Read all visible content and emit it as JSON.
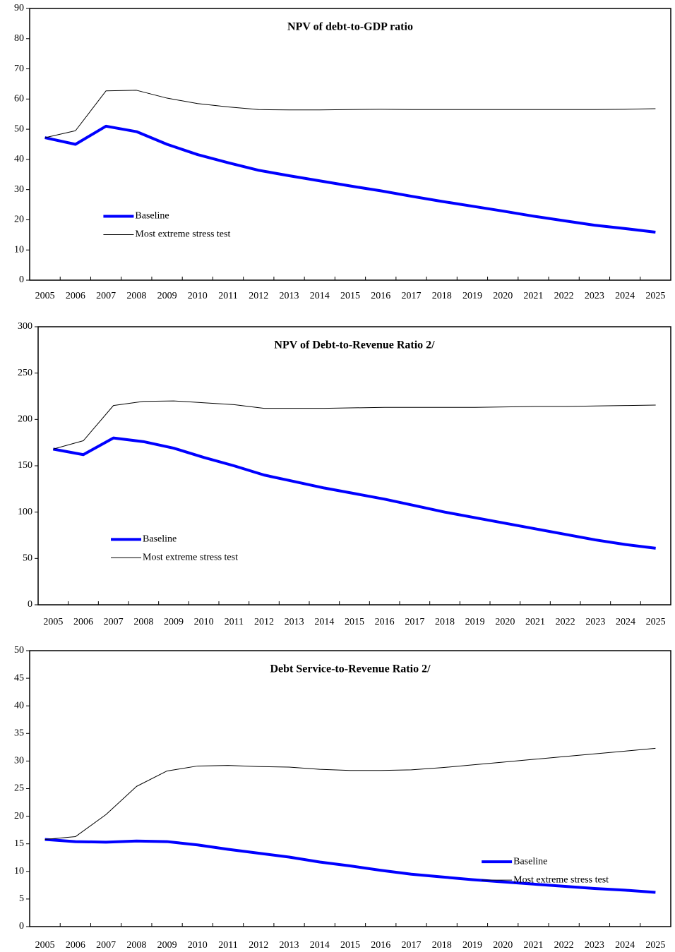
{
  "chart_data": [
    {
      "type": "line",
      "title": "NPV of debt-to-GDP ratio",
      "categories": [
        "2005",
        "2006",
        "2007",
        "2008",
        "2009",
        "2010",
        "2011",
        "2012",
        "2013",
        "2014",
        "2015",
        "2016",
        "2017",
        "2018",
        "2019",
        "2020",
        "2021",
        "2022",
        "2023",
        "2024",
        "2025"
      ],
      "series": [
        {
          "name": "Baseline",
          "color": "#0000ff",
          "values": [
            47.2,
            45.0,
            51.0,
            49.2,
            45.0,
            41.6,
            38.9,
            36.4,
            34.6,
            32.9,
            31.2,
            29.6,
            27.8,
            26.1,
            24.5,
            22.9,
            21.2,
            19.7,
            18.2,
            17.1,
            15.9
          ]
        },
        {
          "name": "Most extreme stress test",
          "color": "#000000",
          "values": [
            47.2,
            49.5,
            62.7,
            62.9,
            60.3,
            58.5,
            57.4,
            56.5,
            56.4,
            56.4,
            56.5,
            56.6,
            56.5,
            56.5,
            56.5,
            56.5,
            56.5,
            56.5,
            56.5,
            56.6,
            56.8
          ]
        }
      ],
      "ylim": [
        0,
        90
      ],
      "yticks": [
        0,
        10,
        20,
        30,
        40,
        50,
        60,
        70,
        80,
        90
      ],
      "legend": "left"
    },
    {
      "type": "line",
      "title": "NPV of Debt-to-Revenue Ratio 2/",
      "categories": [
        "2005",
        "2006",
        "2007",
        "2008",
        "2009",
        "2010",
        "2011",
        "2012",
        "2013",
        "2014",
        "2015",
        "2016",
        "2017",
        "2018",
        "2019",
        "2020",
        "2021",
        "2022",
        "2023",
        "2024",
        "2025"
      ],
      "series": [
        {
          "name": "Baseline",
          "color": "#0000ff",
          "values": [
            168,
            162,
            180,
            176,
            169,
            159,
            150,
            140,
            133,
            126,
            120,
            114,
            107,
            100,
            94,
            88,
            82,
            76,
            70,
            65,
            61
          ]
        },
        {
          "name": "Most extreme stress test",
          "color": "#000000",
          "values": [
            168,
            177,
            215,
            219.5,
            220,
            218,
            216,
            212,
            212,
            212,
            212.5,
            213,
            213,
            213,
            213,
            213.5,
            214,
            214,
            214.5,
            215,
            215.5
          ]
        }
      ],
      "ylim": [
        0,
        300
      ],
      "yticks": [
        0,
        50,
        100,
        150,
        200,
        250,
        300
      ],
      "legend": "left"
    },
    {
      "type": "line",
      "title": "Debt Service-to-Revenue Ratio 2/",
      "categories": [
        "2005",
        "2006",
        "2007",
        "2008",
        "2009",
        "2010",
        "2011",
        "2012",
        "2013",
        "2014",
        "2015",
        "2016",
        "2017",
        "2018",
        "2019",
        "2020",
        "2021",
        "2022",
        "2023",
        "2024",
        "2025"
      ],
      "series": [
        {
          "name": "Baseline",
          "color": "#0000ff",
          "values": [
            15.8,
            15.4,
            15.3,
            15.5,
            15.4,
            14.8,
            14.0,
            13.3,
            12.6,
            11.7,
            11.0,
            10.2,
            9.5,
            9.0,
            8.5,
            8.1,
            7.7,
            7.3,
            6.9,
            6.6,
            6.2
          ]
        },
        {
          "name": "Most extreme stress test",
          "color": "#000000",
          "values": [
            15.8,
            16.3,
            20.3,
            25.4,
            28.2,
            29.1,
            29.2,
            29.0,
            28.9,
            28.5,
            28.3,
            28.3,
            28.4,
            28.8,
            29.3,
            29.8,
            30.3,
            30.8,
            31.3,
            31.8,
            32.3
          ]
        }
      ],
      "ylim": [
        0,
        50
      ],
      "yticks": [
        0,
        5,
        10,
        15,
        20,
        25,
        30,
        35,
        40,
        45,
        50
      ],
      "legend": "right"
    }
  ]
}
